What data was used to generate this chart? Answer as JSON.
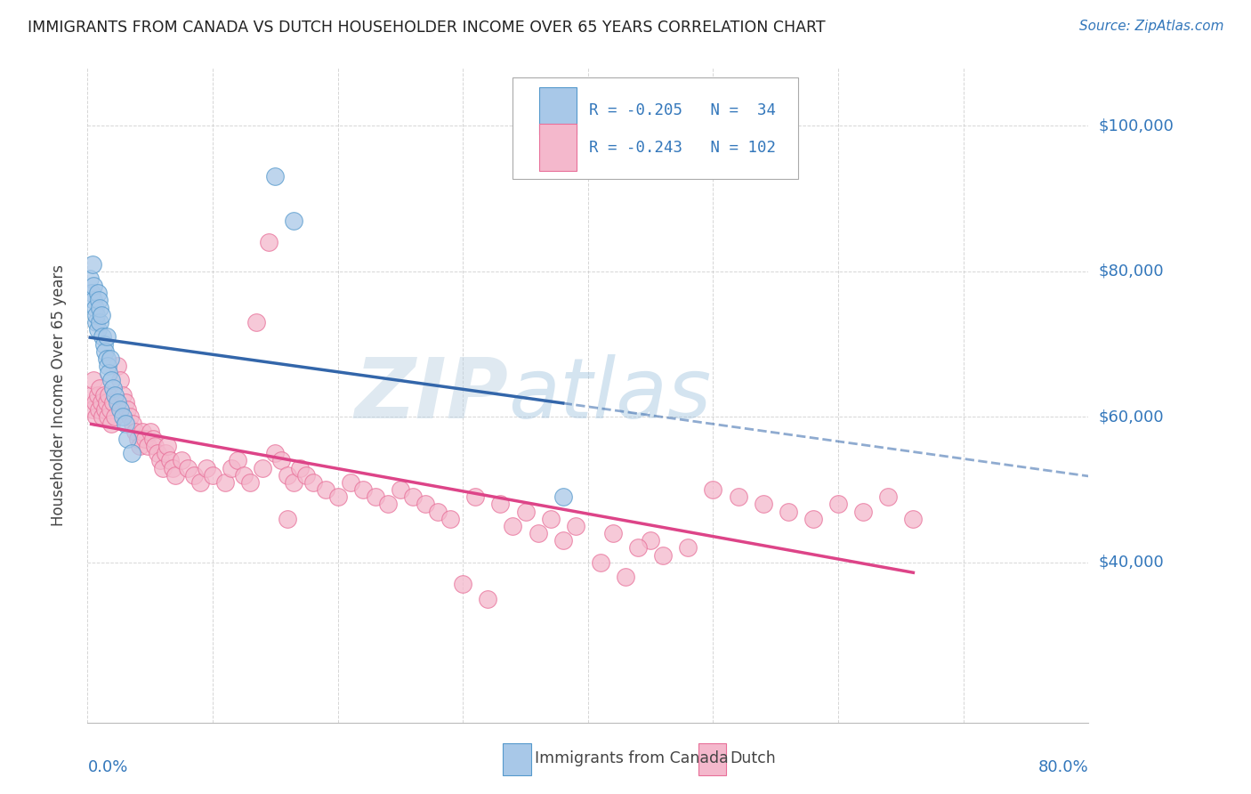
{
  "title": "IMMIGRANTS FROM CANADA VS DUTCH HOUSEHOLDER INCOME OVER 65 YEARS CORRELATION CHART",
  "source": "Source: ZipAtlas.com",
  "ylabel": "Householder Income Over 65 years",
  "xlim": [
    0.0,
    0.8
  ],
  "ylim": [
    18000,
    108000
  ],
  "ytick_values": [
    40000,
    60000,
    80000,
    100000
  ],
  "ytick_labels": [
    "$40,000",
    "$60,000",
    "$80,000",
    "$100,000"
  ],
  "watermark": "ZIPatlas",
  "blue_fill": "#a8c8e8",
  "pink_fill": "#f4b8cc",
  "blue_edge": "#5599cc",
  "pink_edge": "#e87099",
  "line_blue": "#3366aa",
  "line_pink": "#dd4488",
  "text_blue": "#3377bb",
  "grid_color": "#cccccc",
  "background_color": "#ffffff",
  "canada_x": [
    0.002,
    0.003,
    0.004,
    0.005,
    0.005,
    0.006,
    0.007,
    0.007,
    0.008,
    0.008,
    0.009,
    0.01,
    0.01,
    0.011,
    0.012,
    0.013,
    0.014,
    0.015,
    0.015,
    0.016,
    0.017,
    0.018,
    0.019,
    0.02,
    0.022,
    0.024,
    0.026,
    0.028,
    0.03,
    0.032,
    0.035,
    0.15,
    0.165,
    0.38
  ],
  "canada_y": [
    79000,
    77000,
    81000,
    76000,
    78000,
    75000,
    73000,
    74000,
    72000,
    77000,
    76000,
    73000,
    75000,
    74000,
    71000,
    70000,
    69000,
    71000,
    68000,
    67000,
    66000,
    68000,
    65000,
    64000,
    63000,
    62000,
    61000,
    60000,
    59000,
    57000,
    55000,
    93000,
    87000,
    49000
  ],
  "dutch_x": [
    0.003,
    0.004,
    0.005,
    0.006,
    0.007,
    0.008,
    0.009,
    0.01,
    0.011,
    0.012,
    0.013,
    0.014,
    0.015,
    0.016,
    0.017,
    0.018,
    0.019,
    0.02,
    0.022,
    0.024,
    0.026,
    0.028,
    0.03,
    0.032,
    0.034,
    0.036,
    0.038,
    0.04,
    0.042,
    0.044,
    0.046,
    0.048,
    0.05,
    0.052,
    0.054,
    0.056,
    0.058,
    0.06,
    0.062,
    0.064,
    0.066,
    0.068,
    0.07,
    0.075,
    0.08,
    0.085,
    0.09,
    0.095,
    0.1,
    0.11,
    0.115,
    0.12,
    0.125,
    0.13,
    0.14,
    0.15,
    0.155,
    0.16,
    0.165,
    0.17,
    0.175,
    0.18,
    0.19,
    0.2,
    0.21,
    0.22,
    0.23,
    0.24,
    0.25,
    0.26,
    0.27,
    0.28,
    0.29,
    0.31,
    0.33,
    0.35,
    0.37,
    0.39,
    0.42,
    0.45,
    0.48,
    0.5,
    0.52,
    0.54,
    0.56,
    0.58,
    0.6,
    0.62,
    0.64,
    0.66,
    0.34,
    0.36,
    0.38,
    0.44,
    0.46,
    0.41,
    0.43,
    0.3,
    0.32,
    0.16,
    0.145,
    0.135
  ],
  "dutch_y": [
    63000,
    61000,
    65000,
    62000,
    60000,
    63000,
    61000,
    64000,
    62000,
    60000,
    63000,
    61000,
    62000,
    60000,
    63000,
    61000,
    59000,
    62000,
    60000,
    67000,
    65000,
    63000,
    62000,
    61000,
    60000,
    59000,
    58000,
    57000,
    56000,
    58000,
    57000,
    56000,
    58000,
    57000,
    56000,
    55000,
    54000,
    53000,
    55000,
    56000,
    54000,
    53000,
    52000,
    54000,
    53000,
    52000,
    51000,
    53000,
    52000,
    51000,
    53000,
    54000,
    52000,
    51000,
    53000,
    55000,
    54000,
    52000,
    51000,
    53000,
    52000,
    51000,
    50000,
    49000,
    51000,
    50000,
    49000,
    48000,
    50000,
    49000,
    48000,
    47000,
    46000,
    49000,
    48000,
    47000,
    46000,
    45000,
    44000,
    43000,
    42000,
    50000,
    49000,
    48000,
    47000,
    46000,
    48000,
    47000,
    49000,
    46000,
    45000,
    44000,
    43000,
    42000,
    41000,
    40000,
    38000,
    37000,
    35000,
    46000,
    84000,
    73000
  ]
}
